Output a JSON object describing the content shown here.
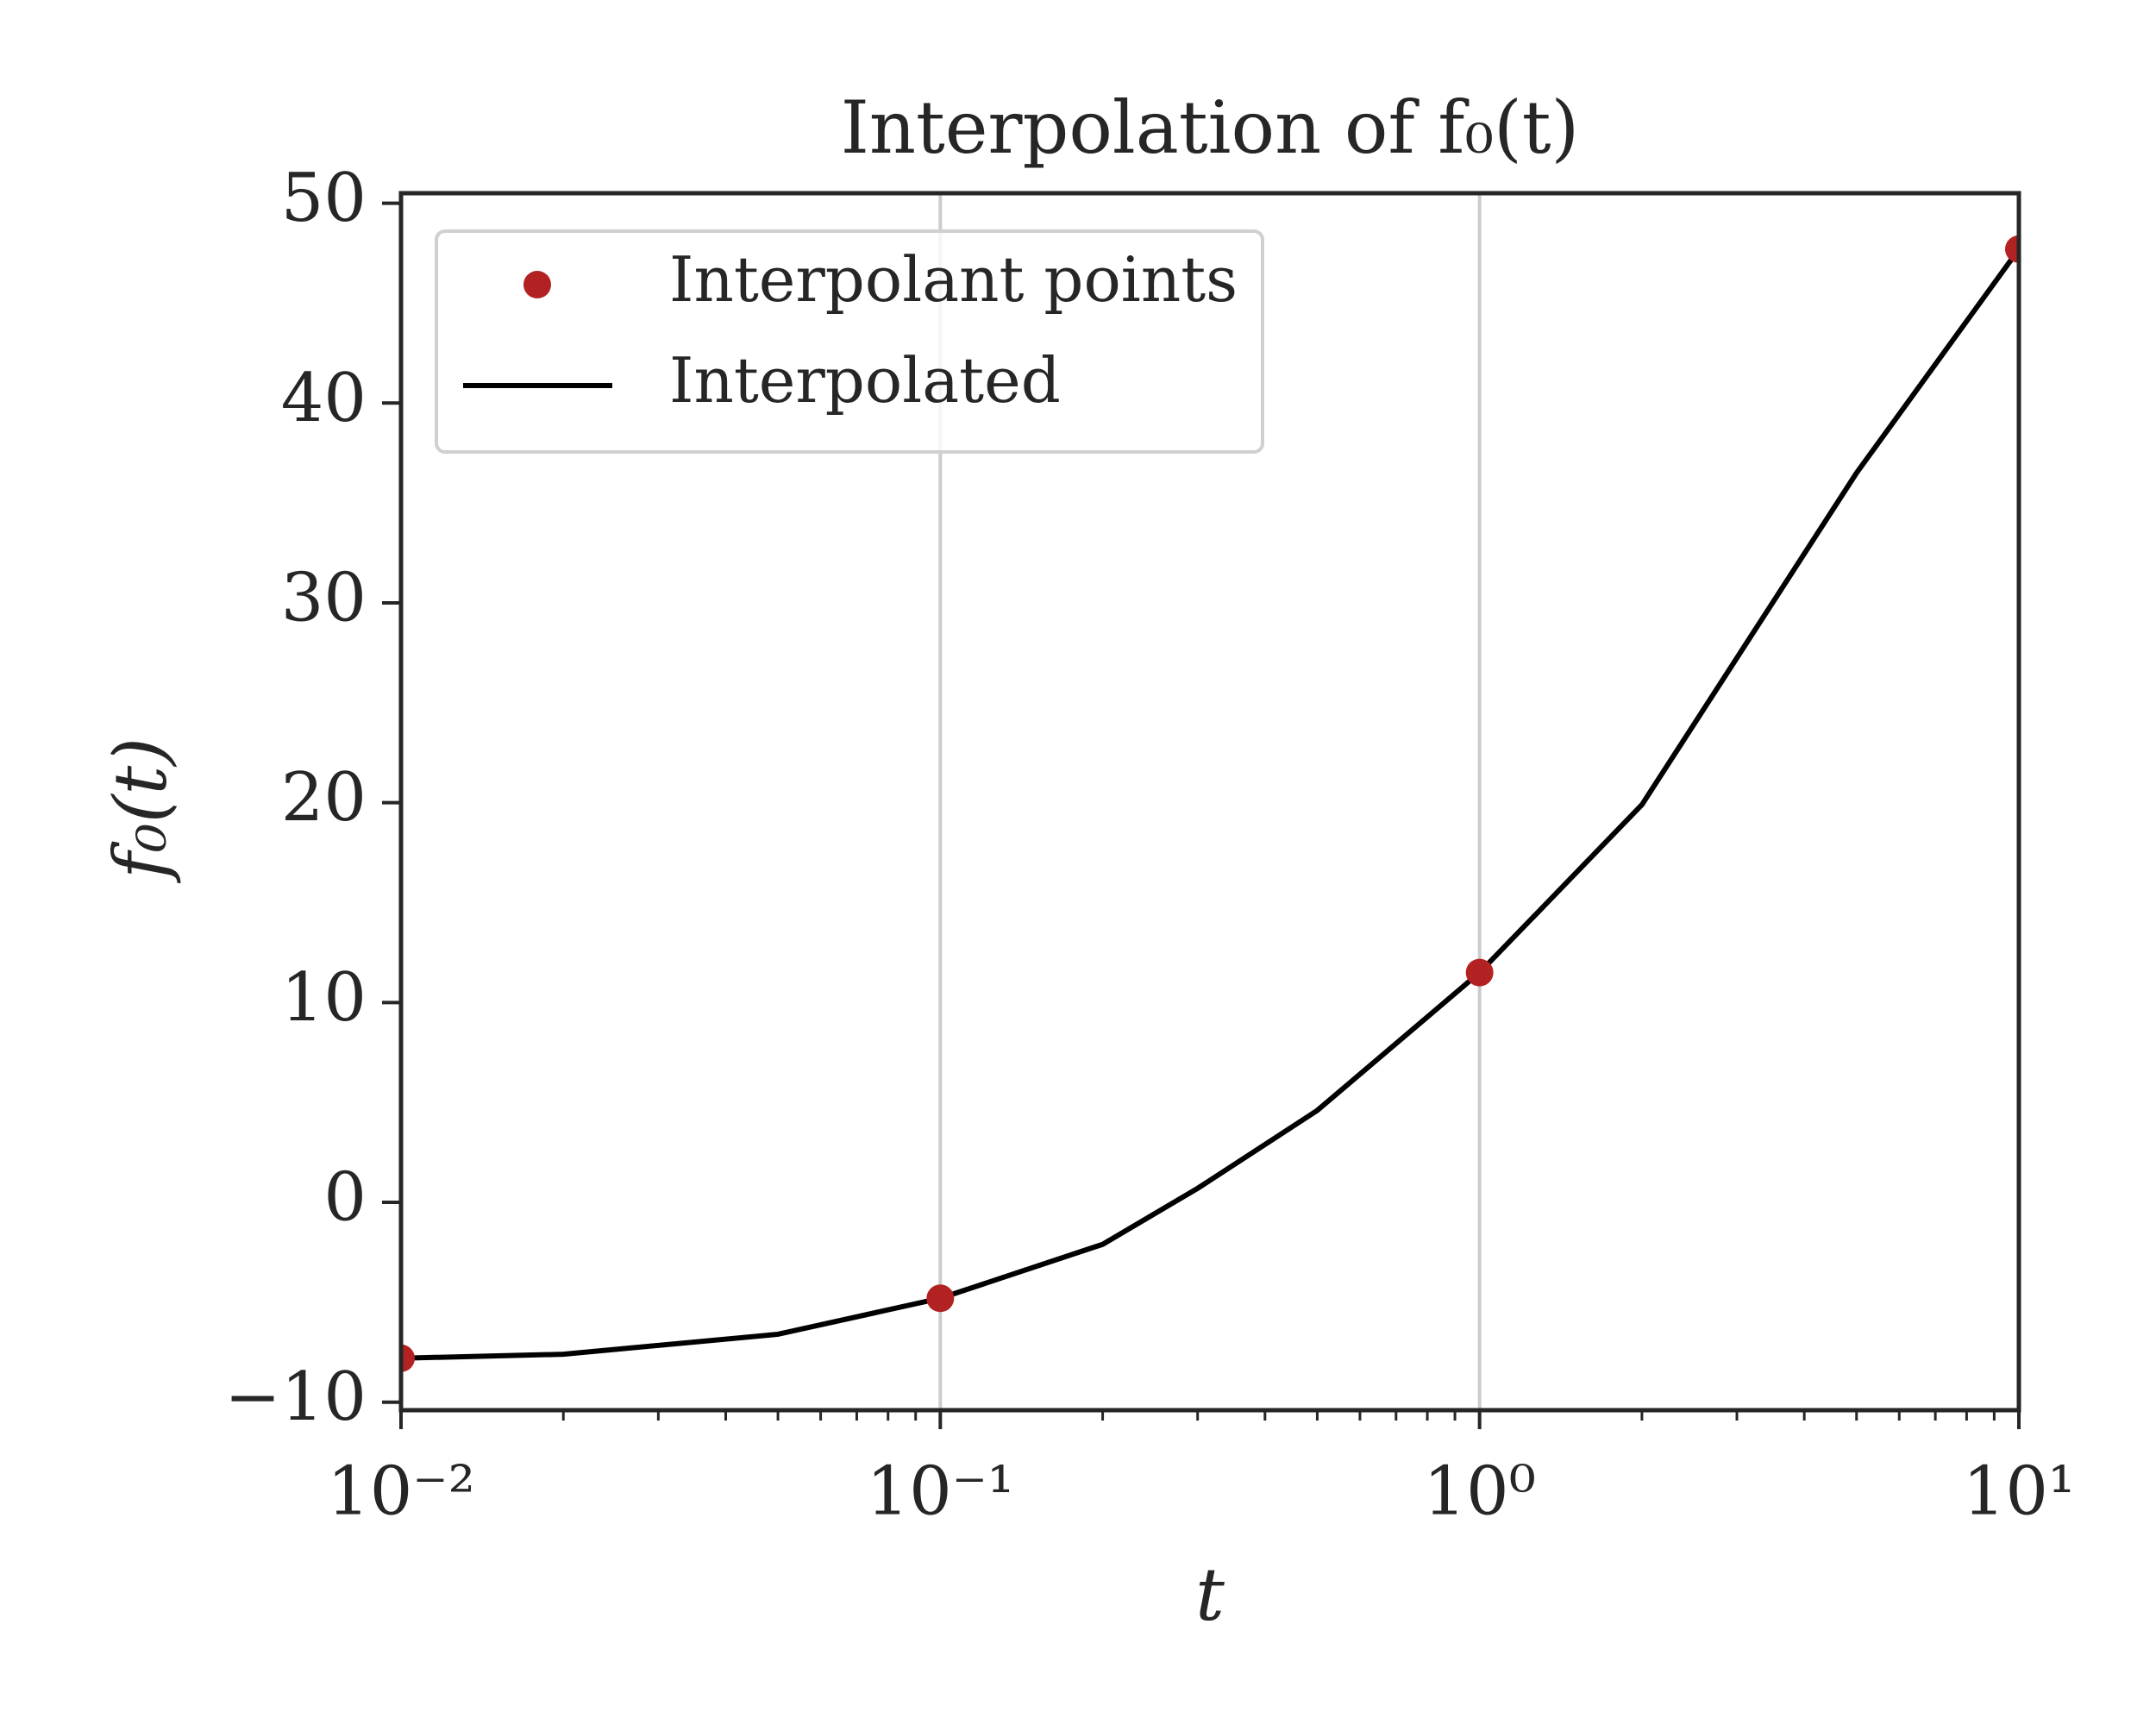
{
  "chart_data": {
    "type": "line",
    "title": "Interpolation of f₀(t)",
    "xlabel": "t",
    "ylabel": "f₀(t)",
    "xscale": "log",
    "xlim": [
      0.01,
      10
    ],
    "ylim": [
      -10.4,
      50.5
    ],
    "xticks": [
      {
        "value": 0.01,
        "label": "10⁻²"
      },
      {
        "value": 0.1,
        "label": "10⁻¹"
      },
      {
        "value": 1,
        "label": "10⁰"
      },
      {
        "value": 10,
        "label": "10¹"
      }
    ],
    "yticks": [
      {
        "value": -10,
        "label": "−10"
      },
      0,
      10,
      20,
      30,
      40,
      50
    ],
    "grid": "x",
    "legend": "upper left",
    "series": [
      {
        "name": "Interpolant points",
        "color": "#b22222",
        "marker": "o",
        "x": [
          0.01,
          0.1,
          1,
          10
        ],
        "values": [
          -7.8,
          -4.8,
          11.5,
          47.7
        ]
      },
      {
        "name": "Interpolated",
        "color": "#000000",
        "marker": "none",
        "x": [
          0.01,
          0.02,
          0.05,
          0.1,
          0.2,
          0.3,
          0.5,
          1,
          2,
          5,
          10
        ],
        "values": [
          -7.8,
          -7.6,
          -6.6,
          -4.8,
          -2.1,
          0.7,
          4.6,
          11.5,
          19.9,
          36.5,
          47.7
        ]
      }
    ]
  }
}
